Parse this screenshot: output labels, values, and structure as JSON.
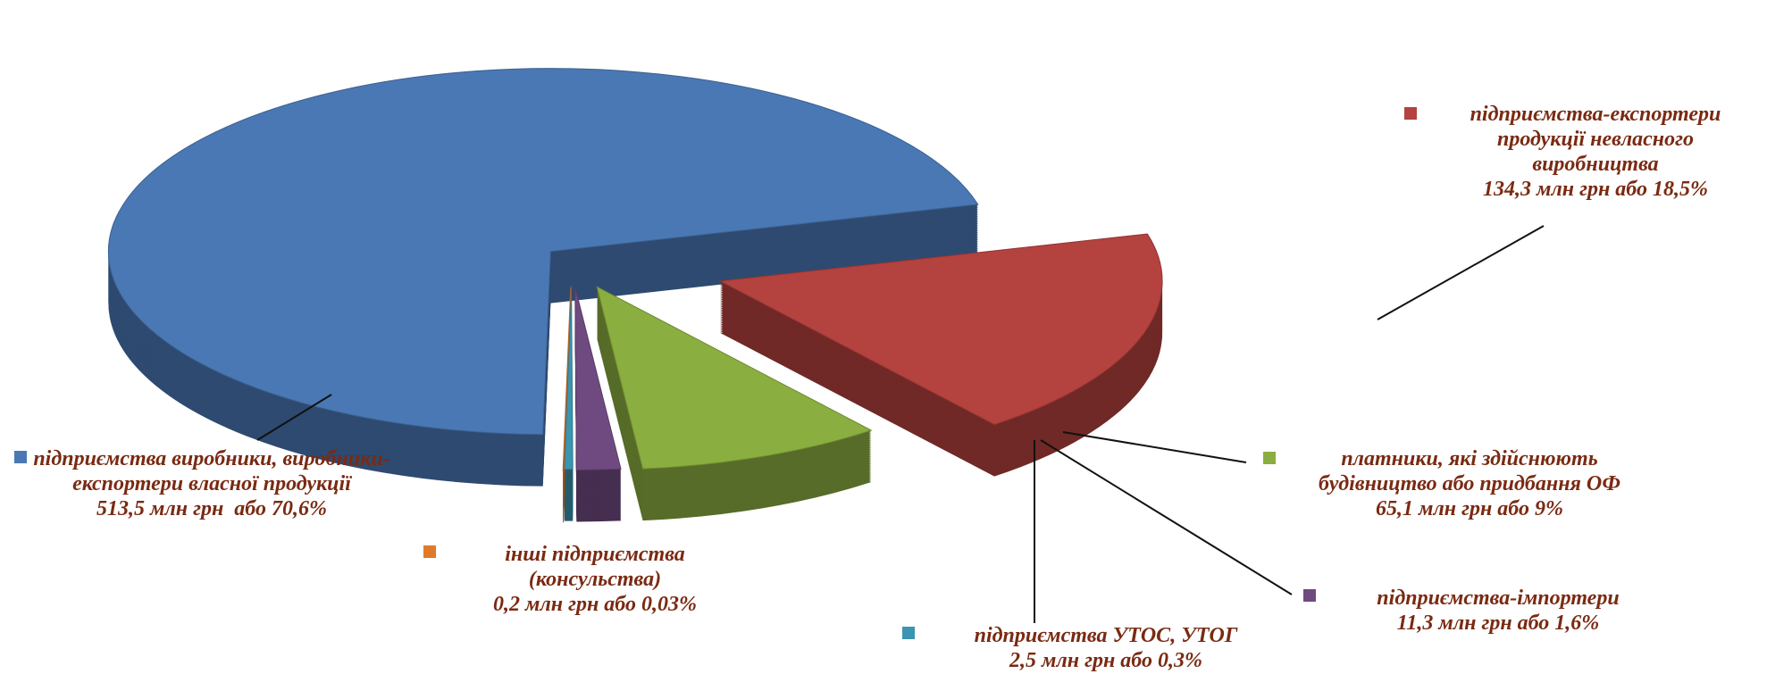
{
  "chart_data": {
    "type": "pie",
    "categories": [
      "підприємства виробники, виробники-експортери власної продукції",
      "підприємства-експортери продукції невласного виробництва",
      "платники, які здійснюють будівництво або придбання ОФ",
      "підприємства-імпортери",
      "підприємства УТОС, УТОГ",
      "інші підприємства (консульства)"
    ],
    "values": [
      70.6,
      18.5,
      9,
      1.6,
      0.3,
      0.03
    ],
    "value_labels": [
      "513,5 млн грн  або 70,6%",
      "134,3 млн грн або 18,5%",
      "65,1 млн грн або 9%",
      "11,3 млн грн або 1,6%",
      "2,5 млн грн або 0,3%",
      "0,2 млн грн або 0,03%"
    ],
    "colors": [
      "#4a78b4",
      "#b4423e",
      "#8aae40",
      "#6f4a80",
      "#3c94b0",
      "#e07a2a"
    ]
  }
}
